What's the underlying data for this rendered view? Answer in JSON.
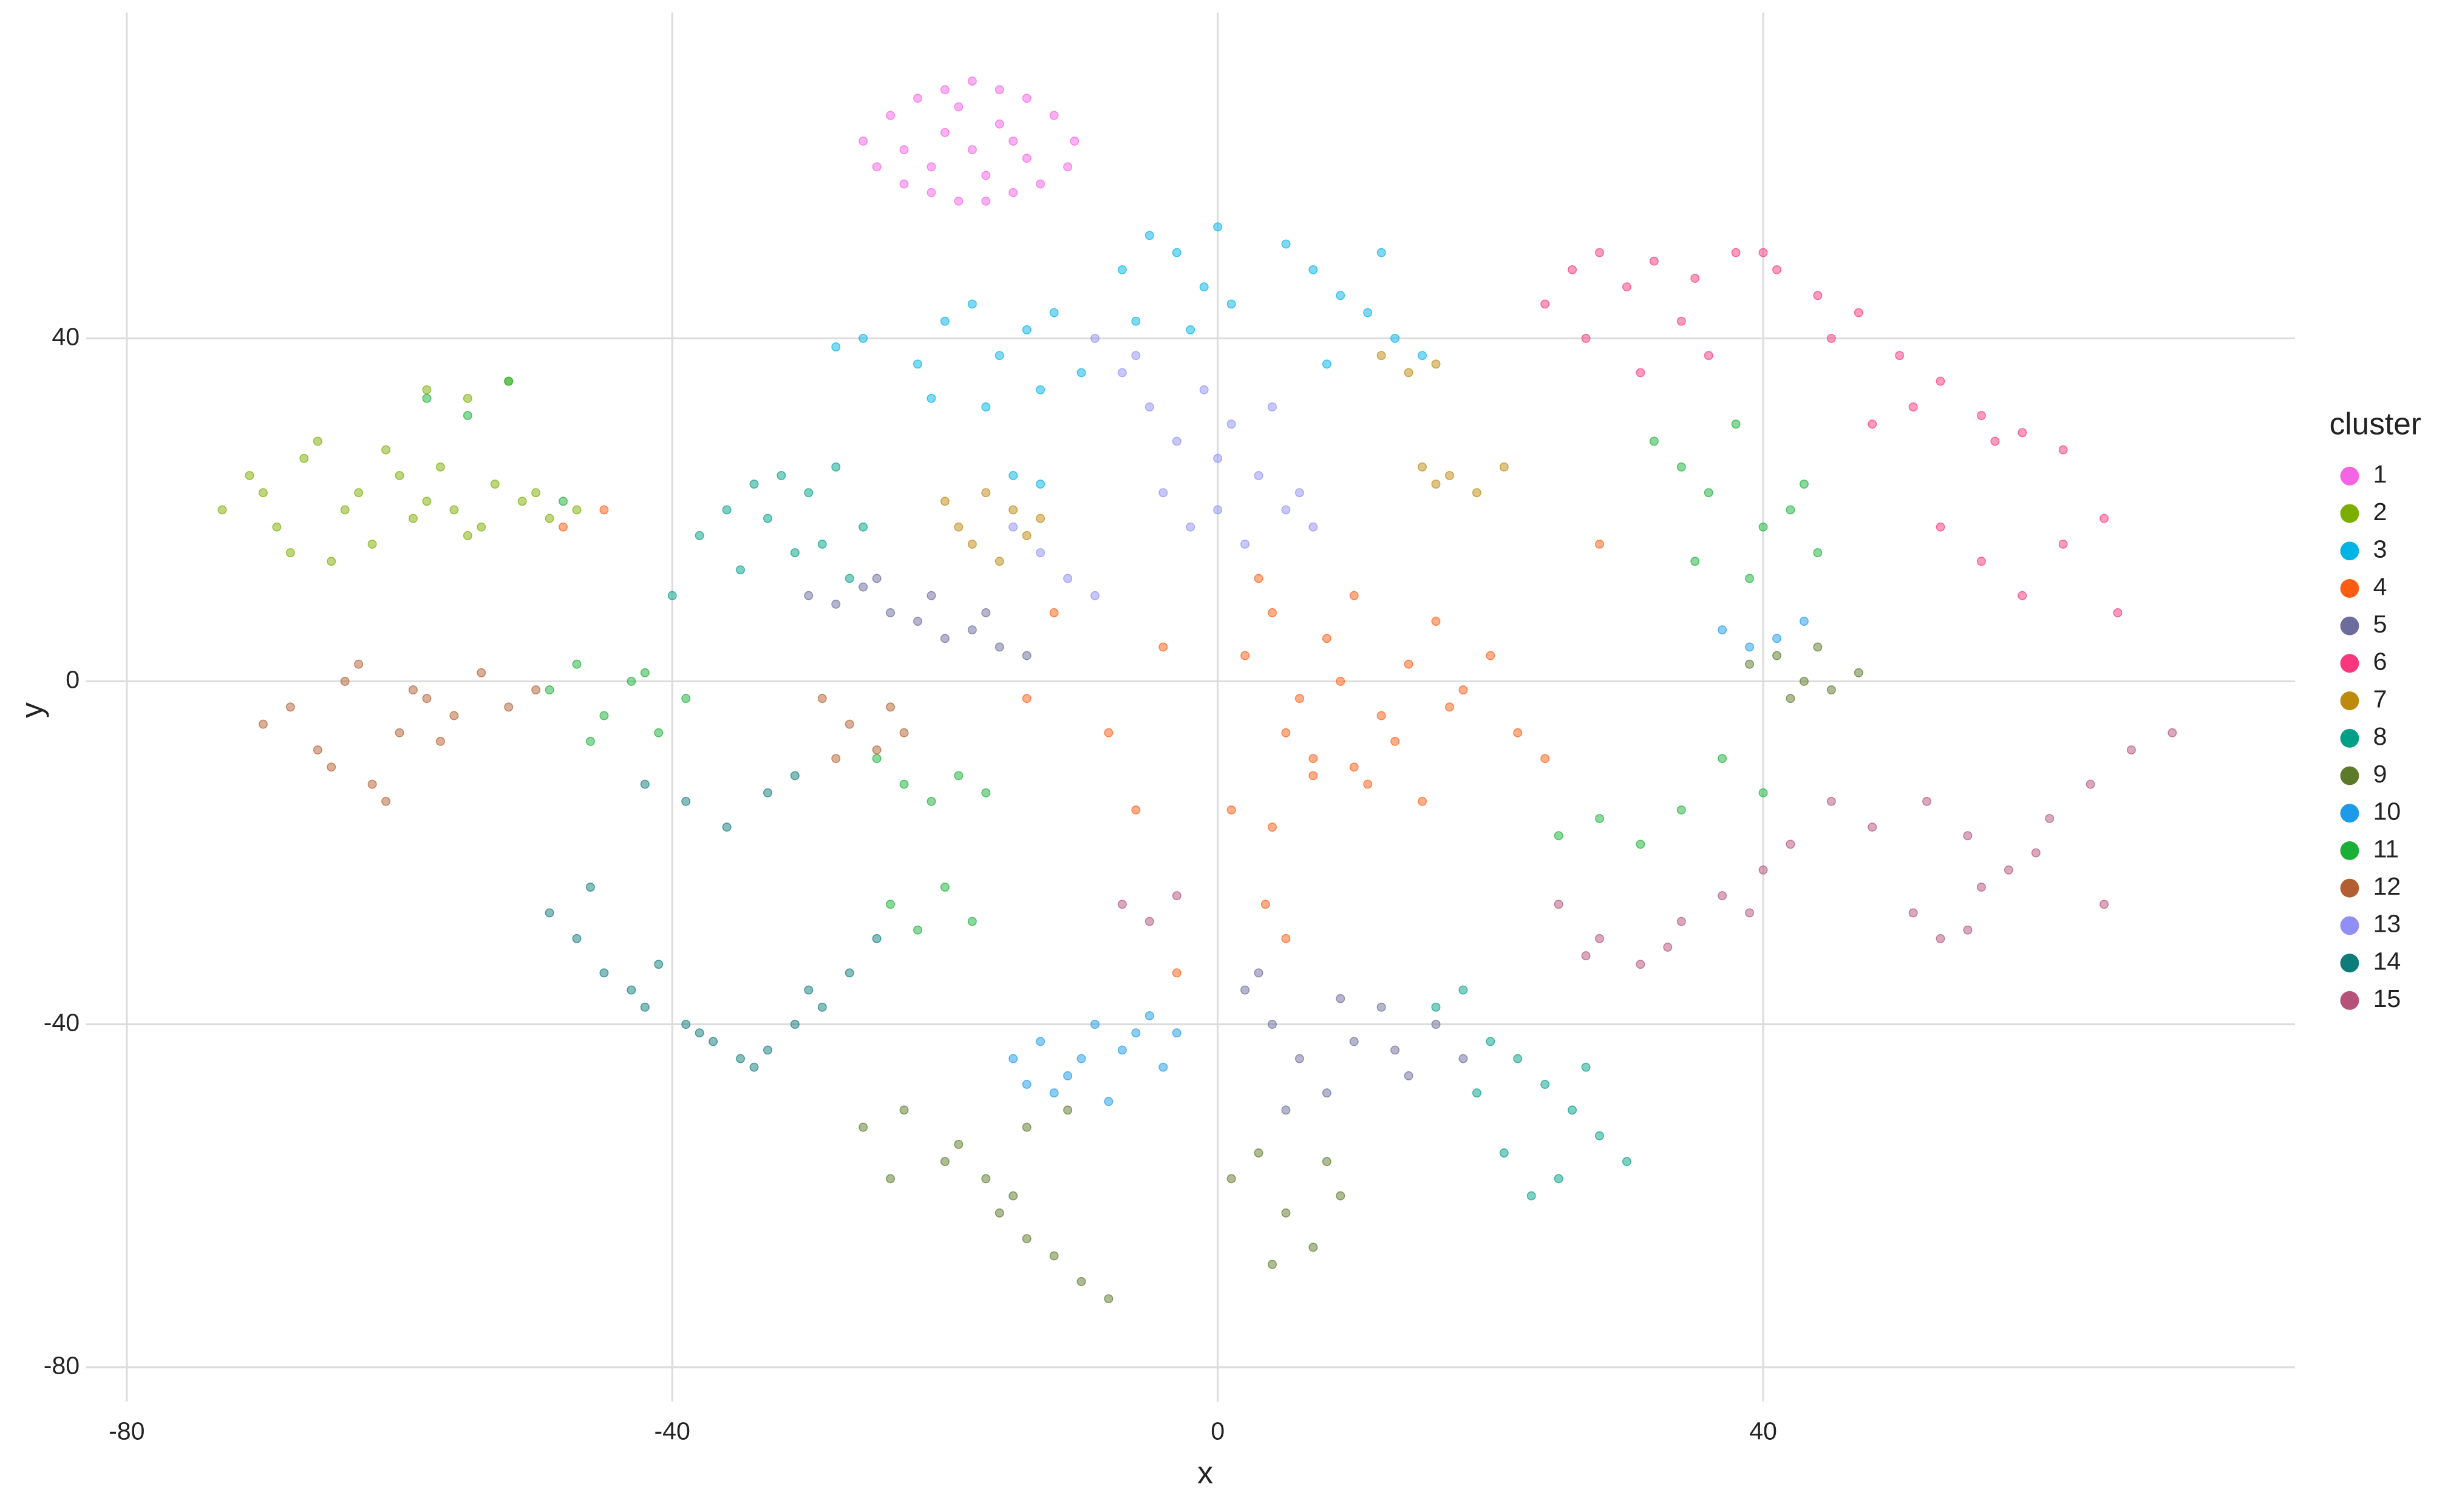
{
  "chart_data": {
    "type": "scatter",
    "xlabel": "x",
    "ylabel": "y",
    "legend_title": "cluster",
    "xlim": [
      -83,
      79
    ],
    "ylim": [
      -84,
      78
    ],
    "xticks": [
      -80,
      -40,
      0,
      40
    ],
    "yticks": [
      -80,
      -40,
      0,
      40
    ],
    "grid": true,
    "legend": "right",
    "series": [
      {
        "name": "1",
        "color": "#f564e3",
        "x": [
          -26,
          -24,
          -22,
          -20,
          -18,
          -16,
          -14,
          -12,
          -10.5,
          -25,
          -23,
          -21,
          -19,
          -17,
          -15,
          -13,
          -11,
          -23,
          -20,
          -18,
          -16,
          -14,
          -21,
          -17,
          -15,
          -19
        ],
        "values": [
          63,
          66,
          68,
          69,
          70,
          69,
          68,
          66,
          63,
          60,
          58,
          57,
          56,
          56,
          57,
          58,
          60,
          62,
          64,
          62,
          65,
          61,
          60,
          59,
          63,
          67
        ]
      },
      {
        "name": "2",
        "color": "#7cae00",
        "x": [
          -73,
          -71,
          -69,
          -67,
          -65,
          -63,
          -61,
          -59,
          -57,
          -55,
          -53,
          -51,
          -49,
          -47,
          -70,
          -66,
          -62,
          -58,
          -54,
          -50,
          -68,
          -64,
          -60,
          -56,
          -58,
          -55,
          -52
        ],
        "values": [
          20,
          24,
          18,
          26,
          14,
          22,
          27,
          19,
          25,
          17,
          23,
          21,
          19,
          20,
          22,
          28,
          16,
          21,
          18,
          22,
          15,
          20,
          24,
          20,
          34,
          33,
          35
        ]
      },
      {
        "name": "3",
        "color": "#00b4e6",
        "x": [
          -28,
          -26,
          -22,
          -20,
          -18,
          -16,
          -14,
          -12,
          -10,
          -21,
          -17,
          -13,
          -7,
          -5,
          -3,
          -1,
          1,
          -6,
          -2,
          0,
          5,
          7,
          9,
          11,
          13,
          15,
          8,
          12,
          -15,
          -13
        ],
        "values": [
          39,
          40,
          37,
          42,
          44,
          38,
          41,
          43,
          36,
          33,
          32,
          34,
          48,
          52,
          50,
          46,
          44,
          42,
          41,
          53,
          51,
          48,
          45,
          43,
          40,
          38,
          37,
          50,
          24,
          23
        ]
      },
      {
        "name": "4",
        "color": "#fd5d13",
        "x": [
          2,
          4,
          6,
          8,
          10,
          12,
          14,
          16,
          18,
          20,
          5,
          9,
          13,
          17,
          3,
          7,
          11,
          15,
          1,
          4,
          7,
          10,
          -4,
          -8,
          -12,
          -14,
          24,
          28,
          -6,
          3.5,
          5,
          -45,
          -48,
          -3,
          22
        ],
        "values": [
          3,
          8,
          -2,
          5,
          10,
          -4,
          2,
          7,
          -1,
          3,
          -6,
          0,
          -7,
          -3,
          12,
          -9,
          -12,
          -14,
          -15,
          -17,
          -11,
          -10,
          4,
          -6,
          8,
          -2,
          -9,
          16,
          -15,
          -26,
          -30,
          20,
          18,
          -34,
          -6
        ]
      },
      {
        "name": "5",
        "color": "#6c6c9d",
        "x": [
          -30,
          -28,
          -26,
          -24,
          -22,
          -20,
          -18,
          -16,
          -14,
          -25,
          -21,
          -17,
          2,
          4,
          6,
          8,
          10,
          12,
          14,
          16,
          18,
          5,
          9,
          13,
          3
        ],
        "values": [
          10,
          9,
          11,
          8,
          7,
          5,
          6,
          4,
          3,
          12,
          10,
          8,
          -36,
          -40,
          -44,
          -48,
          -42,
          -38,
          -46,
          -40,
          -44,
          -50,
          -37,
          -43,
          -34
        ]
      },
      {
        "name": "6",
        "color": "#f8377d",
        "x": [
          24,
          26,
          28,
          30,
          32,
          34,
          36,
          27,
          31,
          35,
          38,
          41,
          44,
          47,
          50,
          53,
          56,
          59,
          62,
          45,
          51,
          57,
          53,
          56,
          59,
          62,
          65,
          66,
          40,
          48
        ],
        "values": [
          44,
          48,
          50,
          46,
          49,
          42,
          38,
          40,
          36,
          47,
          50,
          48,
          45,
          43,
          38,
          35,
          31,
          29,
          27,
          40,
          32,
          28,
          18,
          14,
          10,
          16,
          19,
          8,
          50,
          30
        ]
      },
      {
        "name": "7",
        "color": "#bd8a0e",
        "x": [
          -20,
          -19,
          -17,
          -15,
          -14,
          -18,
          -16,
          15,
          17,
          19,
          21,
          16,
          12,
          14,
          16,
          -13
        ],
        "values": [
          21,
          18,
          22,
          20,
          17,
          16,
          14,
          25,
          24,
          22,
          25,
          23,
          38,
          36,
          37,
          19
        ]
      },
      {
        "name": "8",
        "color": "#00a087",
        "x": [
          -38,
          -36,
          -34,
          -32,
          -30,
          -28,
          -26,
          -35,
          -31,
          -27,
          -33,
          -29,
          -40,
          16,
          18,
          20,
          22,
          24,
          26,
          28,
          30,
          21,
          25,
          19,
          23,
          27
        ],
        "values": [
          17,
          20,
          23,
          24,
          22,
          25,
          18,
          13,
          15,
          12,
          19,
          16,
          10,
          -38,
          -36,
          -42,
          -44,
          -47,
          -50,
          -53,
          -56,
          -55,
          -58,
          -48,
          -60,
          -45
        ]
      },
      {
        "name": "9",
        "color": "#5c7a29",
        "x": [
          39,
          41,
          43,
          45,
          47,
          42,
          44,
          -26,
          -23,
          -20,
          -17,
          -14,
          -11,
          -24,
          -19,
          -15,
          -16,
          -14,
          -12,
          -10,
          -8,
          1,
          3,
          5,
          7,
          9,
          4,
          8
        ],
        "values": [
          2,
          3,
          0,
          -1,
          1,
          -2,
          4,
          -52,
          -50,
          -56,
          -58,
          -52,
          -50,
          -58,
          -54,
          -60,
          -62,
          -65,
          -67,
          -70,
          -72,
          -58,
          -55,
          -62,
          -66,
          -60,
          -68,
          -56
        ]
      },
      {
        "name": "10",
        "color": "#1e9be8",
        "x": [
          -15,
          -13,
          -11,
          -9,
          -7,
          -5,
          -3,
          -12,
          -8,
          -4,
          37,
          39,
          41,
          43,
          -14,
          -10,
          -6
        ],
        "values": [
          -44,
          -42,
          -46,
          -40,
          -43,
          -39,
          -41,
          -48,
          -49,
          -45,
          6,
          4,
          5,
          7,
          -47,
          -44,
          -41
        ]
      },
      {
        "name": "11",
        "color": "#1ab038",
        "x": [
          -49,
          -47,
          -45,
          -43,
          -41,
          -39,
          -46,
          -42,
          -25,
          -23,
          -21,
          -19,
          -17,
          -24,
          -20,
          -22,
          -18,
          32,
          34,
          36,
          38,
          40,
          42,
          44,
          35,
          39,
          43,
          25,
          28,
          31,
          34,
          37,
          40,
          -58,
          -55,
          -52,
          -48
        ],
        "values": [
          -1,
          2,
          -4,
          0,
          -6,
          -2,
          -7,
          1,
          -9,
          -12,
          -14,
          -11,
          -13,
          -26,
          -24,
          -29,
          -28,
          28,
          25,
          22,
          30,
          18,
          20,
          15,
          14,
          12,
          23,
          -18,
          -16,
          -19,
          -15,
          -9,
          -13,
          33,
          31,
          35,
          21
        ]
      },
      {
        "name": "12",
        "color": "#b45f32",
        "x": [
          -70,
          -68,
          -66,
          -64,
          -62,
          -60,
          -58,
          -56,
          -54,
          -52,
          -50,
          -65,
          -61,
          -57,
          -63,
          -59,
          -29,
          -27,
          -25,
          -23,
          -28,
          -24
        ],
        "values": [
          -5,
          -3,
          -8,
          0,
          -12,
          -6,
          -2,
          -4,
          1,
          -3,
          -1,
          -10,
          -14,
          -7,
          2,
          -1,
          -2,
          -5,
          -8,
          -6,
          -9,
          -3
        ]
      },
      {
        "name": "13",
        "color": "#8f8ff5",
        "x": [
          -9,
          -7,
          -5,
          -3,
          -1,
          1,
          3,
          5,
          7,
          -4,
          0,
          4,
          -2,
          2,
          6,
          -15,
          -13,
          -11,
          -9,
          -6,
          0
        ],
        "values": [
          40,
          36,
          32,
          28,
          34,
          30,
          24,
          20,
          18,
          22,
          26,
          32,
          18,
          16,
          22,
          18,
          15,
          12,
          10,
          38,
          20
        ]
      },
      {
        "name": "14",
        "color": "#0f7c7c",
        "x": [
          -49,
          -47,
          -45,
          -43,
          -41,
          -39,
          -37,
          -35,
          -33,
          -31,
          -29,
          -27,
          -25,
          -46,
          -42,
          -38,
          -34,
          -30,
          -42,
          -39,
          -36,
          -33,
          -31
        ],
        "values": [
          -27,
          -30,
          -34,
          -36,
          -33,
          -40,
          -42,
          -44,
          -43,
          -40,
          -38,
          -34,
          -30,
          -24,
          -38,
          -41,
          -45,
          -36,
          -12,
          -14,
          -17,
          -13,
          -11
        ]
      },
      {
        "name": "15",
        "color": "#b4527a",
        "x": [
          25,
          28,
          31,
          34,
          37,
          40,
          42,
          27,
          33,
          39,
          52,
          55,
          58,
          61,
          64,
          67,
          70,
          56,
          60,
          65,
          -7,
          -5,
          -3,
          51,
          53,
          55,
          45,
          48
        ],
        "values": [
          -26,
          -30,
          -33,
          -28,
          -25,
          -22,
          -19,
          -32,
          -31,
          -27,
          -14,
          -18,
          -22,
          -16,
          -12,
          -8,
          -6,
          -24,
          -20,
          -26,
          -26,
          -28,
          -25,
          -27,
          -30,
          -29,
          -14,
          -17
        ]
      }
    ]
  }
}
